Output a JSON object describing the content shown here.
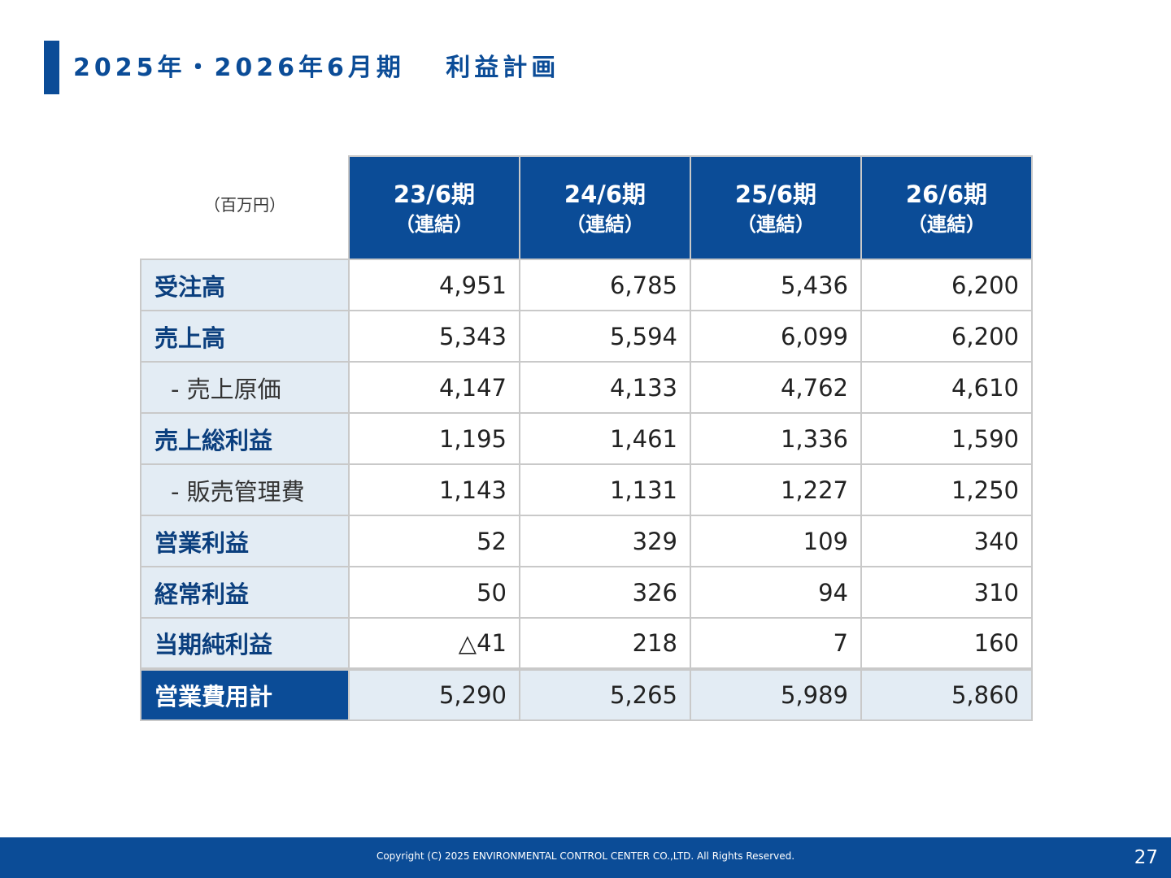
{
  "slide": {
    "title": "2025年・2026年6月期　 利益計画",
    "unit": "（百万円）",
    "accent_color": "#0b4c97",
    "label_bg_color": "#e3ecf4"
  },
  "table": {
    "periods": [
      {
        "name": "23/6期",
        "sub": "（連結）"
      },
      {
        "name": "24/6期",
        "sub": "（連結）"
      },
      {
        "name": "25/6期",
        "sub": "（連結）"
      },
      {
        "name": "26/6期",
        "sub": "（連結）"
      }
    ],
    "rows": [
      {
        "label": "受注高",
        "values": [
          "4,951",
          "6,785",
          "5,436",
          "6,200"
        ]
      },
      {
        "label": "売上高",
        "values": [
          "5,343",
          "5,594",
          "6,099",
          "6,200"
        ]
      },
      {
        "label": "- 売上原価",
        "values": [
          "4,147",
          "4,133",
          "4,762",
          "4,610"
        ]
      },
      {
        "label": "売上総利益",
        "values": [
          "1,195",
          "1,461",
          "1,336",
          "1,590"
        ]
      },
      {
        "label": "- 販売管理費",
        "values": [
          "1,143",
          "1,131",
          "1,227",
          "1,250"
        ]
      },
      {
        "label": "営業利益",
        "values": [
          "52",
          "329",
          "109",
          "340"
        ]
      },
      {
        "label": "経常利益",
        "values": [
          "50",
          "326",
          "94",
          "310"
        ]
      },
      {
        "label": "当期純利益",
        "values": [
          "△41",
          "218",
          "7",
          "160"
        ]
      },
      {
        "label": "営業費用計",
        "values": [
          "5,290",
          "5,265",
          "5,989",
          "5,860"
        ]
      }
    ]
  },
  "footer": {
    "copyright": "Copyright (C) 2025 ENVIRONMENTAL CONTROL CENTER CO.,LTD. All Rights Reserved.",
    "page_number": "27"
  }
}
